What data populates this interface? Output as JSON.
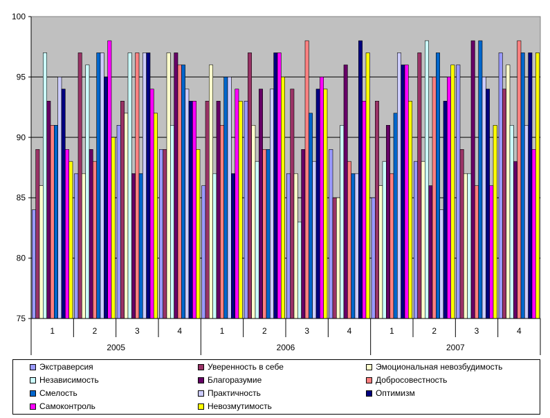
{
  "chart_data": {
    "type": "bar",
    "title": "",
    "xlabel": "",
    "ylabel": "",
    "ylim": [
      75,
      100
    ],
    "yticks": [
      75,
      80,
      85,
      90,
      95,
      100
    ],
    "grid": true,
    "legend_position": "bottom",
    "plot_background": "#c0c0c0",
    "categories": [
      "1",
      "2",
      "3",
      "4",
      "1",
      "2",
      "3",
      "4",
      "1",
      "2",
      "3",
      "4"
    ],
    "groups": [
      {
        "label": "2005",
        "span": 4
      },
      {
        "label": "2006",
        "span": 4
      },
      {
        "label": "2007",
        "span": 4
      }
    ],
    "series": [
      {
        "name": "Экстраверсия",
        "color": "#9999ff",
        "values": [
          84,
          87,
          91,
          89,
          86,
          93,
          87,
          89,
          85,
          88,
          96,
          97
        ]
      },
      {
        "name": "Уверенность в себе",
        "color": "#993366",
        "values": [
          89,
          97,
          93,
          89,
          93,
          97,
          94,
          85,
          93,
          97,
          89,
          94
        ]
      },
      {
        "name": "Эмоциональная невозбудимость",
        "color": "#ffffcc",
        "values": [
          86,
          87,
          92,
          97,
          96,
          91,
          87,
          85,
          86,
          88,
          87,
          96
        ]
      },
      {
        "name": "Независимость",
        "color": "#ccffff",
        "values": [
          97,
          96,
          97,
          91,
          87,
          88,
          83,
          91,
          88,
          98,
          87,
          91
        ]
      },
      {
        "name": "Благоразумие",
        "color": "#660066",
        "values": [
          93,
          89,
          87,
          97,
          93,
          94,
          89,
          96,
          91,
          86,
          98,
          88
        ]
      },
      {
        "name": "Добросовестность",
        "color": "#ff8080",
        "values": [
          91,
          88,
          97,
          96,
          91,
          89,
          98,
          88,
          87,
          95,
          86,
          98
        ]
      },
      {
        "name": "Смелость",
        "color": "#0066cc",
        "values": [
          91,
          97,
          87,
          96,
          95,
          89,
          92,
          87,
          92,
          97,
          98,
          97
        ]
      },
      {
        "name": "Практичность",
        "color": "#ccccff",
        "values": [
          95,
          97,
          97,
          94,
          95,
          94,
          88,
          87,
          97,
          84,
          95,
          91
        ]
      },
      {
        "name": "Оптимизм",
        "color": "#000080",
        "values": [
          94,
          95,
          97,
          93,
          87,
          97,
          94,
          98,
          96,
          93,
          94,
          97
        ]
      },
      {
        "name": "Самоконтроль",
        "color": "#ff00ff",
        "values": [
          89,
          98,
          94,
          93,
          94,
          97,
          95,
          93,
          96,
          95,
          86,
          89
        ]
      },
      {
        "name": "Невозмутимость",
        "color": "#ffff00",
        "values": [
          88,
          90,
          92,
          89,
          93,
          95,
          94,
          97,
          93,
          96,
          91,
          97
        ]
      }
    ]
  }
}
